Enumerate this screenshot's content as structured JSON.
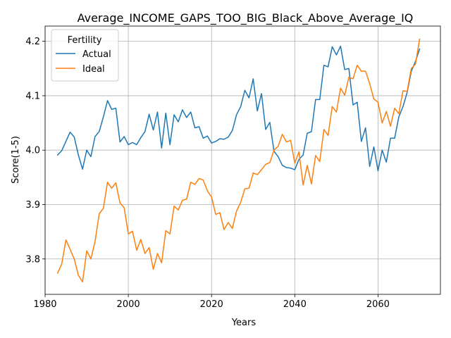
{
  "chart_data": {
    "type": "line",
    "title": "Average_INCOME_GAPS_TOO_BIG_Black_Above_Average_IQ",
    "xlabel": "Years",
    "ylabel": "Score(1-5)",
    "xlim": [
      1980,
      2075
    ],
    "ylim": [
      3.735,
      4.228
    ],
    "xticks": [
      1980,
      2000,
      2020,
      2040,
      2060
    ],
    "yticks": [
      3.8,
      3.9,
      4.0,
      4.1,
      4.2
    ],
    "xtick_labels": [
      "1980",
      "2000",
      "2020",
      "2040",
      "2060"
    ],
    "ytick_labels": [
      "3.8",
      "3.9",
      "4.0",
      "4.1",
      "4.2"
    ],
    "grid": true,
    "legend": {
      "title": "Fertility",
      "position": "top-left"
    },
    "x": [
      1983,
      1984,
      1985,
      1986,
      1987,
      1988,
      1989,
      1990,
      1991,
      1992,
      1993,
      1994,
      1995,
      1996,
      1997,
      1998,
      1999,
      2000,
      2001,
      2002,
      2003,
      2004,
      2005,
      2006,
      2007,
      2008,
      2009,
      2010,
      2011,
      2012,
      2013,
      2014,
      2015,
      2016,
      2017,
      2018,
      2019,
      2020,
      2021,
      2022,
      2023,
      2024,
      2025,
      2026,
      2027,
      2028,
      2029,
      2030,
      2031,
      2032,
      2033,
      2034,
      2035,
      2036,
      2037,
      2038,
      2039,
      2040,
      2041,
      2042,
      2043,
      2044,
      2045,
      2046,
      2047,
      2048,
      2049,
      2050,
      2051,
      2052,
      2053,
      2054,
      2055,
      2056,
      2057,
      2058,
      2059,
      2060,
      2061,
      2062,
      2063,
      2064,
      2065,
      2066,
      2067,
      2068,
      2069,
      2070
    ],
    "series": [
      {
        "name": "Actual",
        "color": "#1f77b4",
        "values": [
          3.991,
          3.999,
          4.016,
          4.033,
          4.024,
          3.991,
          3.965,
          4.0,
          3.988,
          4.025,
          4.034,
          4.061,
          4.091,
          4.075,
          4.077,
          4.015,
          4.025,
          4.01,
          4.014,
          4.01,
          4.023,
          4.034,
          4.066,
          4.037,
          4.07,
          4.004,
          4.068,
          4.01,
          4.065,
          4.052,
          4.074,
          4.06,
          4.07,
          4.041,
          4.043,
          4.022,
          4.026,
          4.013,
          4.016,
          4.021,
          4.02,
          4.024,
          4.036,
          4.065,
          4.08,
          4.11,
          4.096,
          4.131,
          4.072,
          4.104,
          4.038,
          4.051,
          3.998,
          3.988,
          3.972,
          3.968,
          3.967,
          3.964,
          3.983,
          3.991,
          4.031,
          4.034,
          4.093,
          4.093,
          4.156,
          4.153,
          4.19,
          4.175,
          4.191,
          4.148,
          4.15,
          4.083,
          4.088,
          4.016,
          4.041,
          3.97,
          4.006,
          3.962,
          4.0,
          3.978,
          4.022,
          4.022,
          4.061,
          4.08,
          4.106,
          4.145,
          4.163,
          4.186
        ]
      },
      {
        "name": "Ideal",
        "color": "#ff7f0e",
        "values": [
          3.774,
          3.791,
          3.835,
          3.818,
          3.8,
          3.77,
          3.758,
          3.815,
          3.8,
          3.832,
          3.883,
          3.893,
          3.941,
          3.93,
          3.94,
          3.903,
          3.894,
          3.846,
          3.851,
          3.816,
          3.836,
          3.81,
          3.821,
          3.781,
          3.81,
          3.793,
          3.852,
          3.846,
          3.897,
          3.89,
          3.908,
          3.91,
          3.941,
          3.937,
          3.948,
          3.945,
          3.925,
          3.914,
          3.882,
          3.885,
          3.854,
          3.867,
          3.856,
          3.888,
          3.904,
          3.929,
          3.93,
          3.958,
          3.955,
          3.964,
          3.974,
          3.977,
          4.0,
          4.007,
          4.029,
          4.015,
          4.018,
          3.976,
          3.997,
          3.936,
          3.972,
          3.938,
          3.99,
          3.979,
          4.038,
          4.027,
          4.08,
          4.07,
          4.114,
          4.101,
          4.134,
          4.131,
          4.156,
          4.145,
          4.145,
          4.122,
          4.094,
          4.088,
          4.05,
          4.071,
          4.044,
          4.077,
          4.067,
          4.109,
          4.108,
          4.15,
          4.158,
          4.204
        ]
      }
    ]
  }
}
